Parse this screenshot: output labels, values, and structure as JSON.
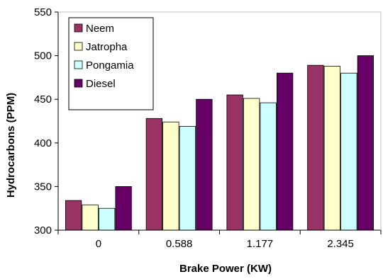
{
  "chart_data": {
    "type": "bar",
    "title": "",
    "xlabel": "Brake Power (KW)",
    "ylabel": "Hydrocarbons (PPM)",
    "ylim": [
      300,
      550
    ],
    "yticks": [
      300,
      350,
      400,
      450,
      500,
      550
    ],
    "categories": [
      "0",
      "0.588",
      "1.177",
      "2.345"
    ],
    "grid": false,
    "legend_position": "top-left",
    "series": [
      {
        "name": "Neem",
        "color": "#993366",
        "values": [
          334,
          428,
          455,
          489
        ]
      },
      {
        "name": "Jatropha",
        "color": "#ffffcc",
        "values": [
          329,
          424,
          451,
          488
        ]
      },
      {
        "name": "Pongamia",
        "color": "#ccffff",
        "values": [
          325,
          419,
          446,
          480
        ]
      },
      {
        "name": "Diesel",
        "color": "#660066",
        "values": [
          350,
          450,
          480,
          500
        ]
      }
    ]
  }
}
